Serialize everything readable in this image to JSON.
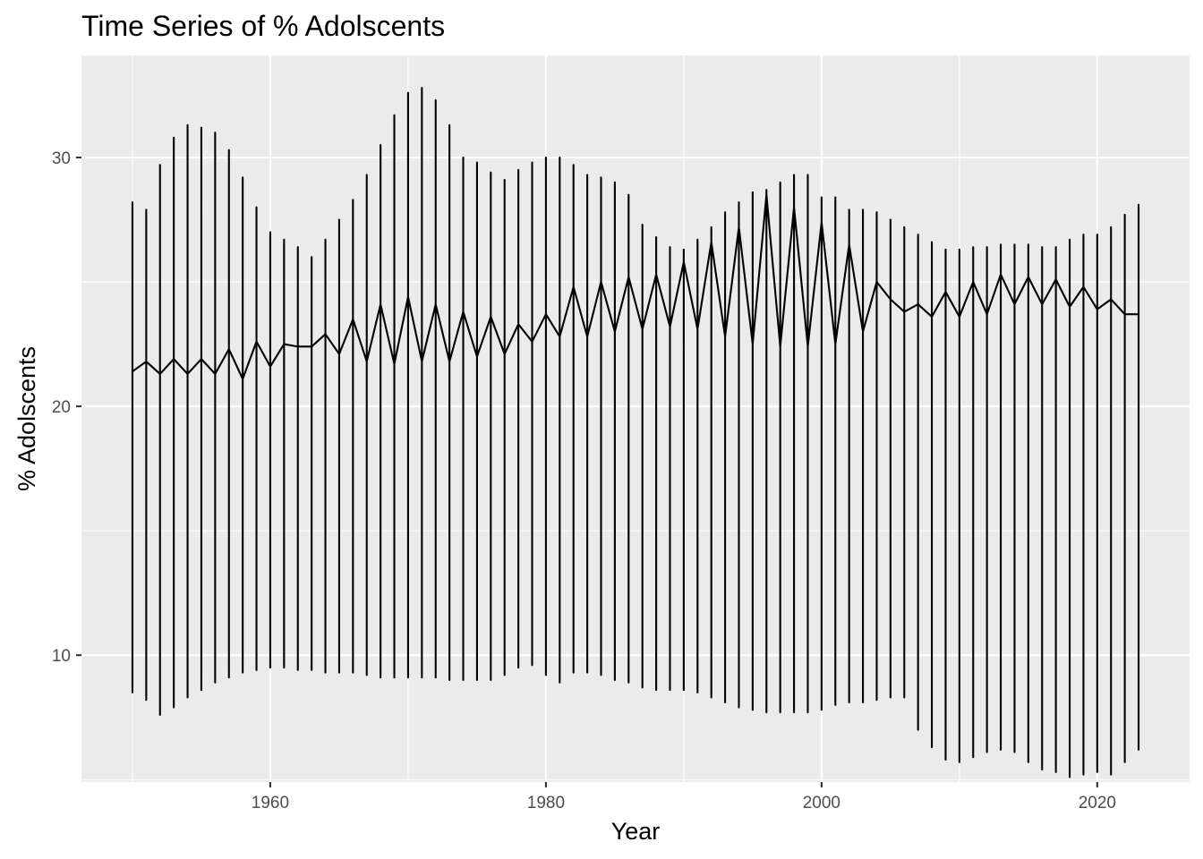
{
  "chart_data": {
    "type": "line",
    "title": "Time Series of % Adolscents",
    "xlabel": "Year",
    "ylabel": "% Adolscents",
    "xlim": [
      1946.3,
      1956.3
    ],
    "ylim": [
      4.9,
      34.1
    ],
    "x_ticks": [
      1960,
      1980,
      2000,
      2020
    ],
    "y_ticks": [
      10,
      20,
      30
    ],
    "x_tick_labels": [
      "1960",
      "1980",
      "2000",
      "2020"
    ],
    "y_tick_labels": [
      "10",
      "20",
      "30"
    ],
    "grid": true,
    "legend": "none",
    "series": [
      {
        "years": [
          1950,
          1951,
          1952,
          1953,
          1954,
          1955,
          1956,
          1957,
          1958,
          1959,
          1960,
          1961,
          1962,
          1963,
          1964,
          1965,
          1966,
          1967,
          1968,
          1969,
          1970,
          1971,
          1972,
          1973,
          1974,
          1975,
          1976,
          1977,
          1978,
          1979,
          1980,
          1981,
          1982,
          1983,
          1984,
          1985,
          1986,
          1987,
          1988,
          1989,
          1990,
          1991,
          1992,
          1993,
          1994,
          1995,
          1996,
          1997,
          1998,
          1999,
          2000,
          2001,
          2002,
          2003,
          2004,
          2005,
          2006,
          2007,
          2008,
          2009,
          2010,
          2011,
          2012,
          2013,
          2014,
          2015,
          2016,
          2017,
          2018,
          2019,
          2020,
          2021,
          2022,
          2023
        ],
        "high": [
          28.2,
          27.9,
          29.7,
          30.8,
          31.3,
          31.2,
          31.0,
          30.3,
          29.2,
          28.0,
          27.0,
          26.7,
          26.4,
          26.0,
          26.7,
          27.5,
          28.3,
          29.3,
          30.5,
          31.7,
          32.6,
          32.8,
          32.3,
          31.3,
          30.0,
          29.8,
          29.4,
          29.1,
          29.5,
          29.8,
          30.0,
          30.0,
          29.7,
          29.3,
          29.2,
          29.0,
          28.5,
          27.3,
          26.8,
          26.4,
          26.3,
          26.7,
          27.2,
          27.8,
          28.2,
          28.6,
          28.7,
          29.0,
          29.3,
          29.3,
          28.4,
          28.4,
          27.9,
          27.9,
          27.8,
          27.5,
          27.2,
          26.9,
          26.6,
          26.3,
          26.3,
          26.4,
          26.4,
          26.5,
          26.5,
          26.5,
          26.4,
          26.4,
          26.7,
          26.9,
          26.9,
          27.2,
          27.7,
          28.1
        ],
        "mid": [
          21.4,
          21.8,
          21.3,
          21.9,
          21.3,
          21.9,
          21.3,
          22.3,
          21.1,
          22.6,
          21.6,
          22.5,
          22.4,
          22.4,
          22.9,
          22.1,
          23.5,
          21.8,
          24.1,
          21.7,
          24.4,
          21.8,
          24.1,
          21.8,
          23.8,
          22.0,
          23.6,
          22.1,
          23.3,
          22.6,
          23.7,
          22.8,
          24.8,
          22.8,
          25.0,
          23.0,
          25.2,
          23.1,
          25.3,
          23.2,
          25.8,
          23.1,
          26.6,
          22.8,
          27.2,
          22.5,
          28.5,
          22.4,
          28.0,
          22.4,
          27.4,
          22.5,
          26.5,
          23.0,
          25.0,
          24.3,
          23.8,
          24.1,
          23.6,
          24.6,
          23.6,
          25.0,
          23.7,
          25.3,
          24.1,
          25.2,
          24.1,
          25.1,
          24.0,
          24.8,
          23.9,
          24.3,
          23.7,
          23.7
        ],
        "low": [
          8.5,
          8.2,
          7.6,
          7.9,
          8.3,
          8.6,
          8.9,
          9.1,
          9.3,
          9.4,
          9.5,
          9.5,
          9.4,
          9.4,
          9.3,
          9.3,
          9.3,
          9.2,
          9.1,
          9.1,
          9.1,
          9.1,
          9.1,
          9.0,
          9.0,
          9.0,
          9.0,
          9.2,
          9.5,
          9.6,
          9.2,
          8.9,
          9.3,
          9.3,
          9.2,
          9.0,
          8.9,
          8.7,
          8.6,
          8.6,
          8.6,
          8.5,
          8.3,
          8.1,
          7.9,
          7.8,
          7.7,
          7.7,
          7.7,
          7.7,
          7.8,
          8.0,
          8.1,
          8.1,
          8.2,
          8.3,
          8.3,
          7.0,
          6.3,
          5.8,
          5.7,
          5.9,
          6.1,
          6.2,
          6.1,
          5.7,
          5.4,
          5.3,
          5.1,
          5.2,
          5.3,
          5.2,
          5.7,
          6.2
        ]
      }
    ]
  }
}
